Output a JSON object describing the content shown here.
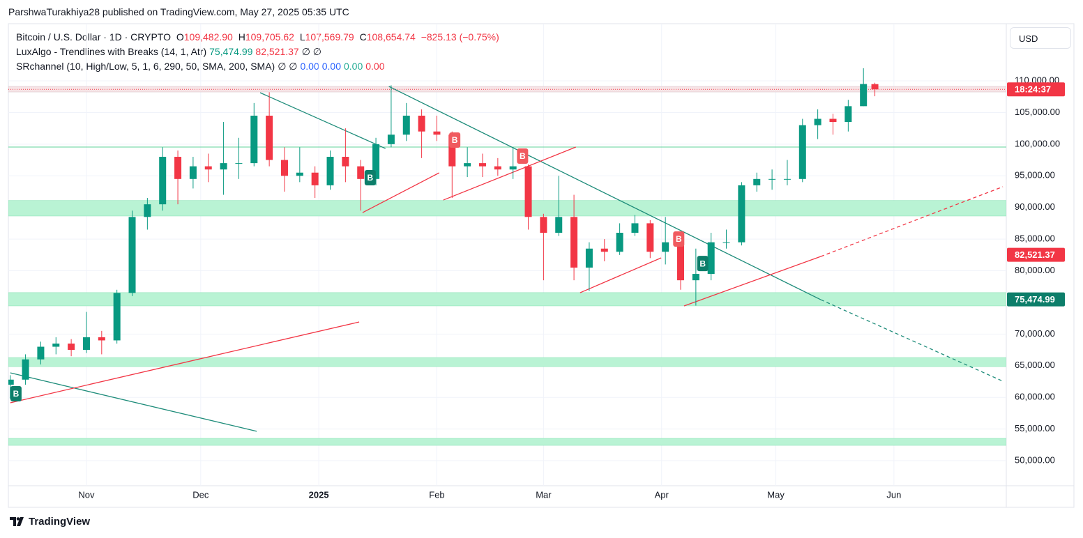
{
  "header": {
    "text": "ParshwaTurakhiya28 published on TradingView.com, May 27, 2025 05:35 UTC"
  },
  "legend": {
    "symbol": "Bitcoin / U.S. Dollar · 1D · CRYPTO",
    "o": "O",
    "open": "109,482.90",
    "h": "H",
    "high": "109,705.62",
    "l": "L",
    "low": "107,569.79",
    "c": "C",
    "close": "108,654.74",
    "change": "−825.13 (−0.75%)",
    "ind1": "LuxAlgo - Trendlines with Breaks (14, 1, Atr)",
    "ind1_v1": "75,474.99",
    "ind1_v2": "82,521.37",
    "ind1_rest": "∅  ∅",
    "ind2": "SRchannel (10, High/Low, 5, 1, 6, 290, 50, SMA, 200, SMA)",
    "ind2_rest": "∅  ∅",
    "ind2_v1": "0.00",
    "ind2_v2": "0.00",
    "ind2_v3": "0.00",
    "ind2_v4": "0.00"
  },
  "currency": "USD",
  "footer": "TradingView",
  "chart_data": {
    "type": "candlestick",
    "up_color": "#089981",
    "down_color": "#f23645",
    "x": [
      0,
      4,
      8,
      12,
      16,
      20,
      24,
      28,
      32,
      36,
      40,
      44,
      48,
      52,
      56,
      60,
      64,
      68,
      72,
      76,
      80,
      84,
      88,
      92,
      96,
      100,
      104,
      108,
      112,
      116,
      120,
      124,
      128,
      132,
      136,
      140,
      144,
      148,
      152,
      156,
      160,
      164,
      168,
      172,
      176,
      180,
      184,
      188,
      192,
      196,
      200,
      204,
      208,
      212,
      216,
      220,
      224,
      227
    ],
    "open": [
      62000,
      62800,
      66000,
      68000,
      68500,
      67500,
      69500,
      69000,
      76500,
      88500,
      90500,
      98000,
      94500,
      96500,
      96000,
      97000,
      97000,
      104500,
      97500,
      95000,
      95500,
      93500,
      98000,
      96500,
      94500,
      100000,
      101500,
      104500,
      102000,
      101500,
      96500,
      97000,
      96500,
      96000,
      96500,
      88500,
      86000,
      88500,
      80500,
      83500,
      83000,
      86000,
      87500,
      83000,
      84500,
      78500,
      79500,
      84500,
      84500,
      93500,
      94500,
      94500,
      94500,
      103000,
      104000,
      103500,
      106000,
      109482.9
    ],
    "high": [
      63500,
      66800,
      68800,
      69500,
      69200,
      73500,
      70500,
      77000,
      89500,
      91500,
      99500,
      99000,
      98000,
      98500,
      103500,
      101000,
      106500,
      108200,
      99500,
      99500,
      96500,
      99000,
      102500,
      97500,
      101000,
      109300,
      106500,
      105500,
      104500,
      102000,
      99500,
      98500,
      97800,
      99500,
      96800,
      89000,
      95000,
      92000,
      84500,
      85000,
      87500,
      88800,
      88000,
      88500,
      85000,
      83500,
      86000,
      86500,
      94000,
      95500,
      96000,
      97500,
      104000,
      105500,
      104800,
      107000,
      112000,
      109705.62
    ],
    "low": [
      59800,
      62000,
      65200,
      66800,
      66500,
      67000,
      66800,
      68500,
      76000,
      86500,
      89500,
      90500,
      93000,
      94000,
      92000,
      94500,
      96500,
      96500,
      92500,
      94000,
      91500,
      92800,
      94000,
      89500,
      93500,
      99500,
      100500,
      97800,
      100500,
      91500,
      94800,
      94800,
      95000,
      94500,
      86500,
      78500,
      85500,
      78500,
      76800,
      81500,
      82500,
      85500,
      82000,
      81000,
      77000,
      74500,
      78500,
      83500,
      84000,
      92500,
      92800,
      93500,
      94000,
      100800,
      101500,
      102000,
      106000,
      107569.79
    ],
    "close": [
      62800,
      66000,
      68000,
      68500,
      67500,
      69500,
      69000,
      76500,
      88500,
      90500,
      98000,
      94500,
      96500,
      96000,
      97000,
      97000,
      104500,
      97500,
      95000,
      95500,
      93500,
      98000,
      96500,
      94500,
      100000,
      101500,
      104500,
      102000,
      101500,
      96500,
      97000,
      96500,
      96000,
      96500,
      88500,
      86000,
      88500,
      80500,
      83500,
      83000,
      86000,
      87500,
      83000,
      84500,
      78500,
      79500,
      84500,
      84500,
      93500,
      94500,
      94500,
      94500,
      103000,
      104000,
      103500,
      106000,
      109500,
      108654.74
    ],
    "xlim": [
      -0.5,
      261.5
    ],
    "ylim": [
      46040,
      119030
    ],
    "xticks": [
      {
        "value": 20,
        "label": "Nov"
      },
      {
        "value": 50,
        "label": "Dec"
      },
      {
        "value": 81,
        "label": "2025"
      },
      {
        "value": 112,
        "label": "Feb"
      },
      {
        "value": 140,
        "label": "Mar"
      },
      {
        "value": 171,
        "label": "Apr"
      },
      {
        "value": 201,
        "label": "May"
      },
      {
        "value": 232,
        "label": "Jun"
      }
    ],
    "yticks": [
      {
        "value": 50000,
        "label": "50,000.00"
      },
      {
        "value": 55000,
        "label": "55,000.00"
      },
      {
        "value": 60000,
        "label": "60,000.00"
      },
      {
        "value": 65000,
        "label": "65,000.00"
      },
      {
        "value": 70000,
        "label": "70,000.00"
      },
      {
        "value": 75000,
        "label": "75,000.00"
      },
      {
        "value": 80000,
        "label": "80,000.00"
      },
      {
        "value": 85000,
        "label": "85,000.00"
      },
      {
        "value": 90000,
        "label": "90,000.00"
      },
      {
        "value": 95000,
        "label": "95,000.00"
      },
      {
        "value": 100000,
        "label": "100,000.00"
      },
      {
        "value": 105000,
        "label": "105,000.00"
      },
      {
        "value": 110000,
        "label": "110,000.00"
      }
    ],
    "grid": true,
    "zones": [
      {
        "low": 108240,
        "high": 109120,
        "color": "#f7e4e6"
      },
      {
        "low": 88650,
        "high": 91100,
        "color": "#b9f3d4"
      },
      {
        "low": 74450,
        "high": 76550,
        "color": "#b9f3d4"
      },
      {
        "low": 64860,
        "high": 66290,
        "color": "#b9f3d4"
      },
      {
        "low": 52420,
        "high": 53520,
        "color": "#b9f3d4"
      }
    ],
    "levels": [
      {
        "value": 99540,
        "color": "#5fd39a"
      }
    ],
    "trendlines": [
      {
        "x1": 0,
        "y1": 63870,
        "x2": 64.7,
        "y2": 54640,
        "color": "#1e8c7a",
        "dashed": false
      },
      {
        "x1": 65.6,
        "y1": 108130,
        "x2": 98.5,
        "y2": 99320,
        "color": "#1e8c7a",
        "dashed": false
      },
      {
        "x1": 99.4,
        "y1": 109120,
        "x2": 212.8,
        "y2": 75430,
        "color": "#1e8c7a",
        "dashed": false
      },
      {
        "x1": 212.8,
        "y1": 75430,
        "x2": 260.6,
        "y2": 62550,
        "color": "#1e8c7a",
        "dashed": true
      },
      {
        "x1": 0,
        "y1": 59140,
        "x2": 91.6,
        "y2": 71910,
        "color": "#f23645",
        "dashed": false
      },
      {
        "x1": 92.5,
        "y1": 89190,
        "x2": 112.6,
        "y2": 95470,
        "color": "#f23645",
        "dashed": false
      },
      {
        "x1": 113.7,
        "y1": 91170,
        "x2": 148.5,
        "y2": 99540,
        "color": "#f23645",
        "dashed": false
      },
      {
        "x1": 149.6,
        "y1": 76530,
        "x2": 170.9,
        "y2": 82040,
        "color": "#f23645",
        "dashed": false
      },
      {
        "x1": 176.9,
        "y1": 74440,
        "x2": 212.8,
        "y2": 82260,
        "color": "#f23645",
        "dashed": false
      },
      {
        "x1": 212.8,
        "y1": 82260,
        "x2": 260.6,
        "y2": 93270,
        "color": "#f23645",
        "dashed": true
      }
    ],
    "signals": [
      {
        "x": 1.5,
        "y": 60570,
        "label": "B",
        "color": "#0d7e6a"
      },
      {
        "x": 94.5,
        "y": 94700,
        "label": "B",
        "color": "#0d7e6a"
      },
      {
        "x": 181.8,
        "y": 81150,
        "label": "B",
        "color": "#0d7e6a"
      },
      {
        "x": 116.7,
        "y": 100640,
        "label": "B",
        "color": "#f05a5f"
      },
      {
        "x": 134.5,
        "y": 98110,
        "label": "B",
        "color": "#f05a5f"
      },
      {
        "x": 175.5,
        "y": 85010,
        "label": "B",
        "color": "#f05a5f"
      }
    ],
    "price_tags": [
      {
        "value": 108654.74,
        "label": "18:24:37",
        "color": "#f23645"
      },
      {
        "value": 82521.37,
        "label": "82,521.37",
        "color": "#f23645"
      },
      {
        "value": 75474.99,
        "label": "75,474.99",
        "color": "#0d7e6a"
      }
    ]
  }
}
